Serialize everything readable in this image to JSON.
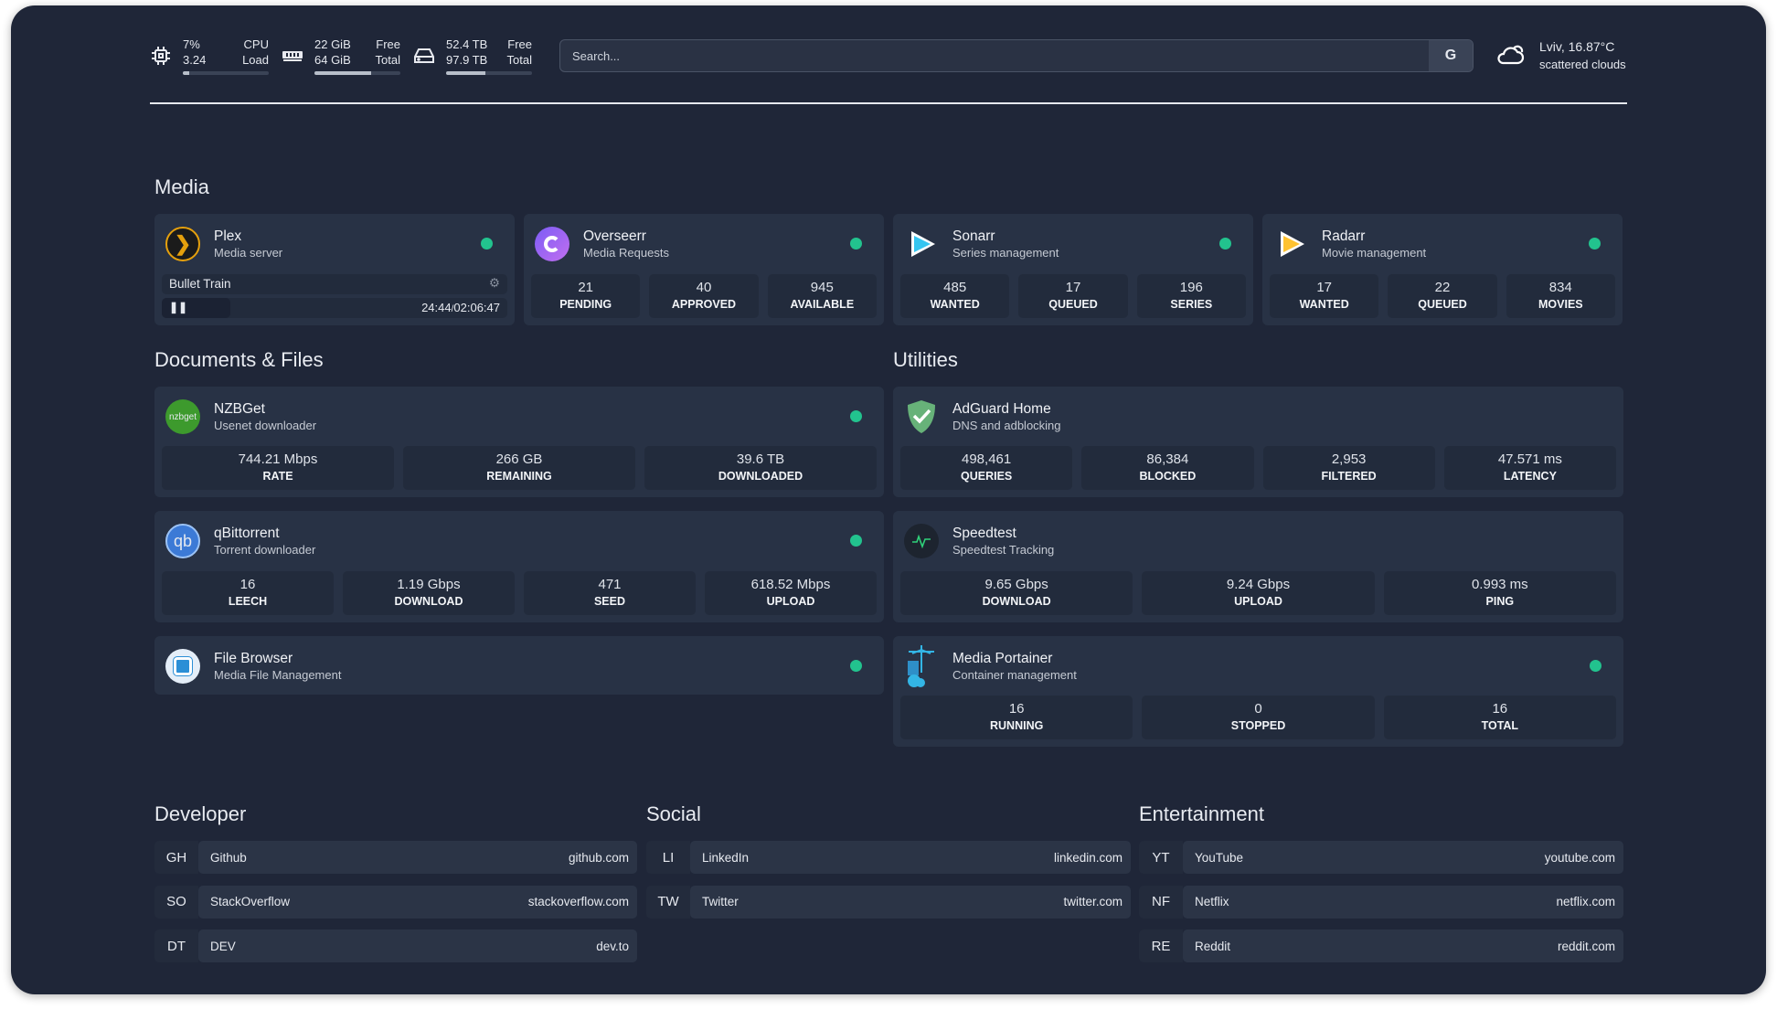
{
  "topbar": {
    "cpu": {
      "icon": "cpu-icon",
      "value1": "7%",
      "label1": "CPU",
      "value2": "3.24",
      "label2": "Load",
      "percent": 7
    },
    "memory": {
      "icon": "memory-icon",
      "value1": "22 GiB",
      "label1": "Free",
      "value2": "64 GiB",
      "label2": "Total",
      "percent": 66
    },
    "disk": {
      "icon": "disk-icon",
      "value1": "52.4 TB",
      "label1": "Free",
      "value2": "97.9 TB",
      "label2": "Total",
      "percent": 46
    },
    "search": {
      "placeholder": "Search...",
      "provider_label": "G"
    },
    "weather": {
      "icon": "cloud-icon",
      "location": "Lviv, 16.87°C",
      "condition": "scattered clouds"
    }
  },
  "colors": {
    "background": "#1f2638",
    "card": "#283245",
    "status_ok": "#22c38e"
  },
  "sections": {
    "media": "Media",
    "documents": "Documents & Files",
    "utilities": "Utilities",
    "developer": "Developer",
    "social": "Social",
    "entertainment": "Entertainment"
  },
  "plex": {
    "title": "Plex",
    "subtitle": "Media server",
    "now_playing": "Bullet Train",
    "position": "24:44",
    "separator": "/",
    "duration": "02:06:47"
  },
  "services": [
    {
      "id": "overseerr",
      "title": "Overseerr",
      "subtitle": "Media Requests",
      "stats": [
        {
          "v": "21",
          "l": "PENDING"
        },
        {
          "v": "40",
          "l": "APPROVED"
        },
        {
          "v": "945",
          "l": "AVAILABLE"
        }
      ]
    },
    {
      "id": "sonarr",
      "title": "Sonarr",
      "subtitle": "Series management",
      "stats": [
        {
          "v": "485",
          "l": "WANTED"
        },
        {
          "v": "17",
          "l": "QUEUED"
        },
        {
          "v": "196",
          "l": "SERIES"
        }
      ]
    },
    {
      "id": "radarr",
      "title": "Radarr",
      "subtitle": "Movie management",
      "stats": [
        {
          "v": "17",
          "l": "WANTED"
        },
        {
          "v": "22",
          "l": "QUEUED"
        },
        {
          "v": "834",
          "l": "MOVIES"
        }
      ]
    },
    {
      "id": "nzbget",
      "title": "NZBGet",
      "subtitle": "Usenet downloader",
      "logo_text": "nzbget",
      "stats": [
        {
          "v": "744.21 Mbps",
          "l": "RATE"
        },
        {
          "v": "266 GB",
          "l": "REMAINING"
        },
        {
          "v": "39.6 TB",
          "l": "DOWNLOADED"
        }
      ]
    },
    {
      "id": "qbittorrent",
      "title": "qBittorrent",
      "subtitle": "Torrent downloader",
      "logo_text": "qb",
      "stats": [
        {
          "v": "16",
          "l": "LEECH"
        },
        {
          "v": "1.19 Gbps",
          "l": "DOWNLOAD"
        },
        {
          "v": "471",
          "l": "SEED"
        },
        {
          "v": "618.52 Mbps",
          "l": "UPLOAD"
        }
      ]
    },
    {
      "id": "filebrowser",
      "title": "File Browser",
      "subtitle": "Media File Management",
      "stats": []
    },
    {
      "id": "adguard",
      "title": "AdGuard Home",
      "subtitle": "DNS and adblocking",
      "stats": [
        {
          "v": "498,461",
          "l": "QUERIES"
        },
        {
          "v": "86,384",
          "l": "BLOCKED"
        },
        {
          "v": "2,953",
          "l": "FILTERED"
        },
        {
          "v": "47.571 ms",
          "l": "LATENCY"
        }
      ]
    },
    {
      "id": "speedtest",
      "title": "Speedtest",
      "subtitle": "Speedtest Tracking",
      "stats": [
        {
          "v": "9.65 Gbps",
          "l": "DOWNLOAD"
        },
        {
          "v": "9.24 Gbps",
          "l": "UPLOAD"
        },
        {
          "v": "0.993 ms",
          "l": "PING"
        }
      ]
    },
    {
      "id": "portainer",
      "title": "Media Portainer",
      "subtitle": "Container management",
      "stats": [
        {
          "v": "16",
          "l": "RUNNING"
        },
        {
          "v": "0",
          "l": "STOPPED"
        },
        {
          "v": "16",
          "l": "TOTAL"
        }
      ]
    }
  ],
  "bookmarks": {
    "developer": [
      {
        "abbr": "GH",
        "name": "Github",
        "url": "github.com"
      },
      {
        "abbr": "SO",
        "name": "StackOverflow",
        "url": "stackoverflow.com"
      },
      {
        "abbr": "DT",
        "name": "DEV",
        "url": "dev.to"
      }
    ],
    "social": [
      {
        "abbr": "LI",
        "name": "LinkedIn",
        "url": "linkedin.com"
      },
      {
        "abbr": "TW",
        "name": "Twitter",
        "url": "twitter.com"
      }
    ],
    "entertainment": [
      {
        "abbr": "YT",
        "name": "YouTube",
        "url": "youtube.com"
      },
      {
        "abbr": "NF",
        "name": "Netflix",
        "url": "netflix.com"
      },
      {
        "abbr": "RE",
        "name": "Reddit",
        "url": "reddit.com"
      }
    ]
  }
}
